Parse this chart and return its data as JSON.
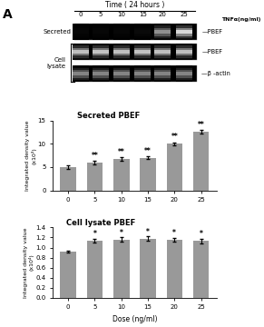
{
  "categories": [
    0,
    5,
    10,
    15,
    20,
    25
  ],
  "secreted_values": [
    5.0,
    6.0,
    6.7,
    7.0,
    10.0,
    12.5
  ],
  "secreted_errors": [
    0.3,
    0.35,
    0.4,
    0.35,
    0.3,
    0.4
  ],
  "secreted_sig": [
    "",
    "**",
    "**",
    "**",
    "**",
    "**"
  ],
  "cell_values": [
    0.92,
    1.14,
    1.16,
    1.18,
    1.15,
    1.13
  ],
  "cell_errors": [
    0.02,
    0.04,
    0.04,
    0.04,
    0.04,
    0.04
  ],
  "cell_sig": [
    "",
    "*",
    "*",
    "*",
    "*",
    "*"
  ],
  "bar_color": "#999999",
  "secreted_title": "Secreted PBEF",
  "cell_title": "Cell lysate PBEF",
  "xlabel": "Dose (ng/ml)",
  "secreted_ylabel": "Integrated density value\n(x10³)",
  "cell_ylabel": "Integrated density value\n(x10⁴)",
  "secreted_ylim": [
    0,
    15
  ],
  "secreted_yticks": [
    0,
    5,
    10,
    15
  ],
  "cell_ylim": [
    0,
    1.4
  ],
  "cell_yticks": [
    0,
    0.2,
    0.4,
    0.6,
    0.8,
    1.0,
    1.2,
    1.4
  ],
  "panel_label": "A",
  "gel_label_time": "Time ( 24 hours )",
  "gel_label_tnf": "TNFα(ng/ml)",
  "gel_doses": [
    "0",
    "5",
    "10",
    "15",
    "20",
    "25"
  ],
  "gel_secreted_label": "Secreted",
  "gel_cell_label": "Cell\nlysate",
  "gel_pbef1": "PBEF",
  "gel_pbef2": "PBEF",
  "gel_bactin": "β -actin",
  "secreted_band_brightness": [
    0.03,
    0.03,
    0.03,
    0.04,
    0.6,
    0.9
  ],
  "cell_pbef_brightness": [
    0.8,
    0.82,
    0.8,
    0.81,
    0.8,
    0.8
  ],
  "bactin_brightness": [
    0.55,
    0.55,
    0.55,
    0.55,
    0.55,
    0.55
  ]
}
